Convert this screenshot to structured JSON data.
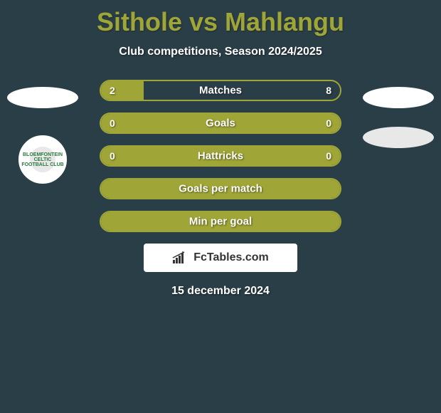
{
  "header": {
    "title": "Sithole vs Mahlangu",
    "subtitle": "Club competitions, Season 2024/2025"
  },
  "stats": [
    {
      "label": "Matches",
      "left_value": "2",
      "right_value": "8",
      "left_fill_pct": 18,
      "right_fill_pct": 0,
      "full_fill": false
    },
    {
      "label": "Goals",
      "left_value": "0",
      "right_value": "0",
      "left_fill_pct": 0,
      "right_fill_pct": 0,
      "full_fill": true
    },
    {
      "label": "Hattricks",
      "left_value": "0",
      "right_value": "0",
      "left_fill_pct": 0,
      "right_fill_pct": 0,
      "full_fill": true
    },
    {
      "label": "Goals per match",
      "left_value": "",
      "right_value": "",
      "left_fill_pct": 0,
      "right_fill_pct": 0,
      "full_fill": true
    },
    {
      "label": "Min per goal",
      "left_value": "",
      "right_value": "",
      "left_fill_pct": 0,
      "right_fill_pct": 0,
      "full_fill": true
    }
  ],
  "branding": {
    "text": "FcTables.com"
  },
  "date": "15 december 2024",
  "clubs": {
    "left_badge_text": "BLOEMFONTEIN CELTIC FOOTBALL CLUB"
  },
  "colors": {
    "background": "#2a3e47",
    "accent": "#9fa536",
    "text_light": "#ffffff",
    "branding_bg": "#ffffff",
    "branding_text": "#333333"
  }
}
